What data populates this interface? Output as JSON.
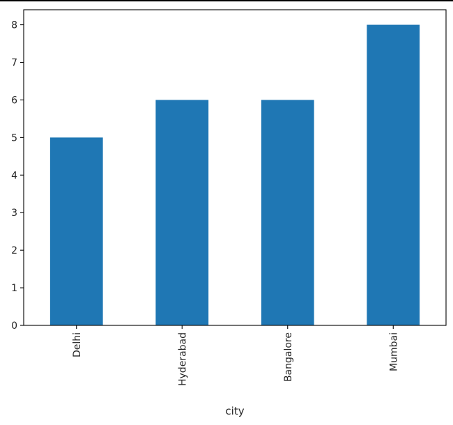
{
  "chart_data": {
    "type": "bar",
    "categories": [
      "Delhi",
      "Hyderabad",
      "Bangalore",
      "Mumbai"
    ],
    "values": [
      5,
      6,
      6,
      8
    ],
    "title": "",
    "xlabel": "city",
    "ylabel": "",
    "ylim": [
      0,
      8.4
    ],
    "yticks": [
      0,
      1,
      2,
      3,
      4,
      5,
      6,
      7,
      8
    ],
    "bar_color": "#1f77b4",
    "axis_color": "#000000",
    "grid": false,
    "legend": "none",
    "xtick_rotation": "vertical"
  }
}
